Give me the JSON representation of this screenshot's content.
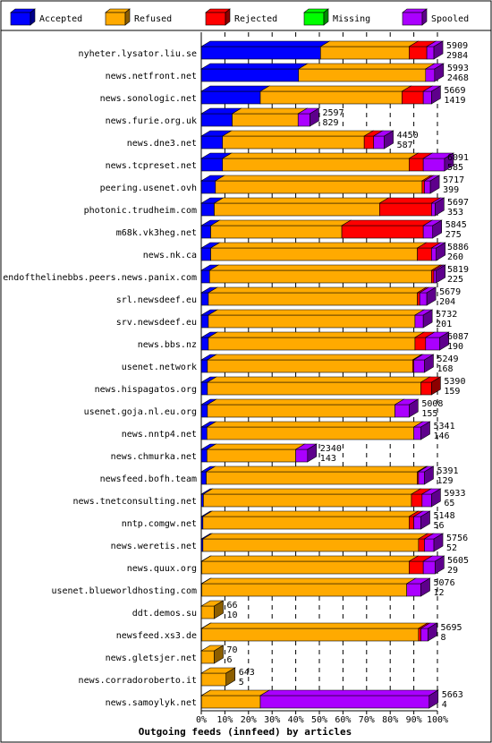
{
  "chart_data": {
    "type": "bar",
    "orientation": "horizontal",
    "stacked": true,
    "value_unit": "percent of articles",
    "title": "",
    "xlabel": "Outgoing feeds (innfeed) by articles",
    "ylabel": "",
    "xlim": [
      0,
      100
    ],
    "x_ticks": [
      "0%",
      "10%",
      "20%",
      "30%",
      "40%",
      "50%",
      "60%",
      "70%",
      "80%",
      "90%",
      "100%"
    ],
    "grid": "vertical dashed lines at 10% intervals",
    "legend_position": "top",
    "categories": [
      "nyheter.lysator.liu.se",
      "news.netfront.net",
      "news.sonologic.net",
      "news.furie.org.uk",
      "news.dne3.net",
      "news.tcpreset.net",
      "peering.usenet.ovh",
      "photonic.trudheim.com",
      "m68k.vk3heg.net",
      "news.nk.ca",
      "endofthelinebbs.peers.news.panix.com",
      "srl.newsdeef.eu",
      "srv.newsdeef.eu",
      "news.bbs.nz",
      "usenet.network",
      "news.hispagatos.org",
      "usenet.goja.nl.eu.org",
      "news.nntp4.net",
      "news.chmurka.net",
      "newsfeed.bofh.team",
      "news.tnetconsulting.net",
      "nntp.comgw.net",
      "news.weretis.net",
      "news.quux.org",
      "usenet.blueworldhosting.com",
      "ddt.demos.su",
      "newsfeed.xs3.de",
      "news.gletsjer.net",
      "news.corradoroberto.it",
      "news.samoylyk.net"
    ],
    "offered_articles": [
      5909,
      5993,
      5669,
      2597,
      4450,
      6091,
      5717,
      5697,
      5845,
      5886,
      5819,
      5679,
      5732,
      6087,
      5249,
      5390,
      5008,
      5341,
      2340,
      5391,
      5933,
      5148,
      5756,
      5605,
      5076,
      66,
      5695,
      70,
      643,
      5663
    ],
    "accepted_articles": [
      2984,
      2468,
      1419,
      829,
      587,
      585,
      399,
      353,
      275,
      260,
      225,
      204,
      201,
      190,
      168,
      159,
      155,
      146,
      143,
      129,
      65,
      56,
      52,
      29,
      12,
      10,
      8,
      6,
      5,
      4
    ],
    "series": [
      {
        "name": "Accepted",
        "color": "#0000ff",
        "values": [
          50.5,
          41.2,
          25.0,
          13.1,
          9.0,
          9.0,
          6.0,
          5.5,
          4.0,
          4.0,
          3.5,
          3.0,
          3.0,
          3.0,
          2.6,
          2.6,
          2.6,
          2.4,
          2.4,
          2.1,
          0.9,
          0.7,
          0.7,
          0.2,
          0.2,
          0.0,
          0.2,
          0.0,
          0.0,
          0.1
        ]
      },
      {
        "name": "Refused",
        "color": "#ffaa00",
        "values": [
          37.5,
          53.8,
          60.0,
          27.9,
          60.0,
          79.0,
          87.5,
          70.0,
          55.5,
          87.5,
          94.0,
          88.5,
          87.5,
          87.5,
          86.9,
          90.4,
          79.4,
          87.6,
          37.6,
          89.4,
          88.1,
          87.3,
          91.3,
          87.8,
          86.8,
          5.5,
          91.8,
          5.5,
          10.5,
          24.9
        ]
      },
      {
        "name": "Rejected",
        "color": "#ff0000",
        "values": [
          7.5,
          0.0,
          9.0,
          0.0,
          4.0,
          6.0,
          1.0,
          22.0,
          34.5,
          6.0,
          1.0,
          1.0,
          0.0,
          4.5,
          0.5,
          4.5,
          0.0,
          0.0,
          0.0,
          0.5,
          4.5,
          2.0,
          2.5,
          6.0,
          0.0,
          0.0,
          1.0,
          0.0,
          0.0,
          0.0
        ]
      },
      {
        "name": "Missing",
        "color": "#00ff00",
        "values": [
          0,
          0,
          0,
          0,
          0,
          0,
          0,
          0,
          0,
          0,
          0,
          0,
          0,
          0,
          0,
          0,
          0,
          0,
          0,
          0,
          0,
          0,
          0,
          0,
          0,
          0,
          0,
          0,
          0,
          0
        ]
      },
      {
        "name": "Spooled",
        "color": "#aa00ff",
        "values": [
          3.0,
          3.8,
          3.5,
          5.0,
          4.5,
          9.0,
          2.5,
          1.5,
          4.0,
          2.0,
          1.0,
          3.0,
          3.5,
          6.0,
          4.5,
          0.0,
          6.0,
          3.0,
          5.0,
          2.5,
          4.0,
          3.0,
          4.0,
          5.0,
          6.0,
          0.0,
          3.0,
          0.0,
          0.0,
          71.5
        ]
      }
    ]
  }
}
